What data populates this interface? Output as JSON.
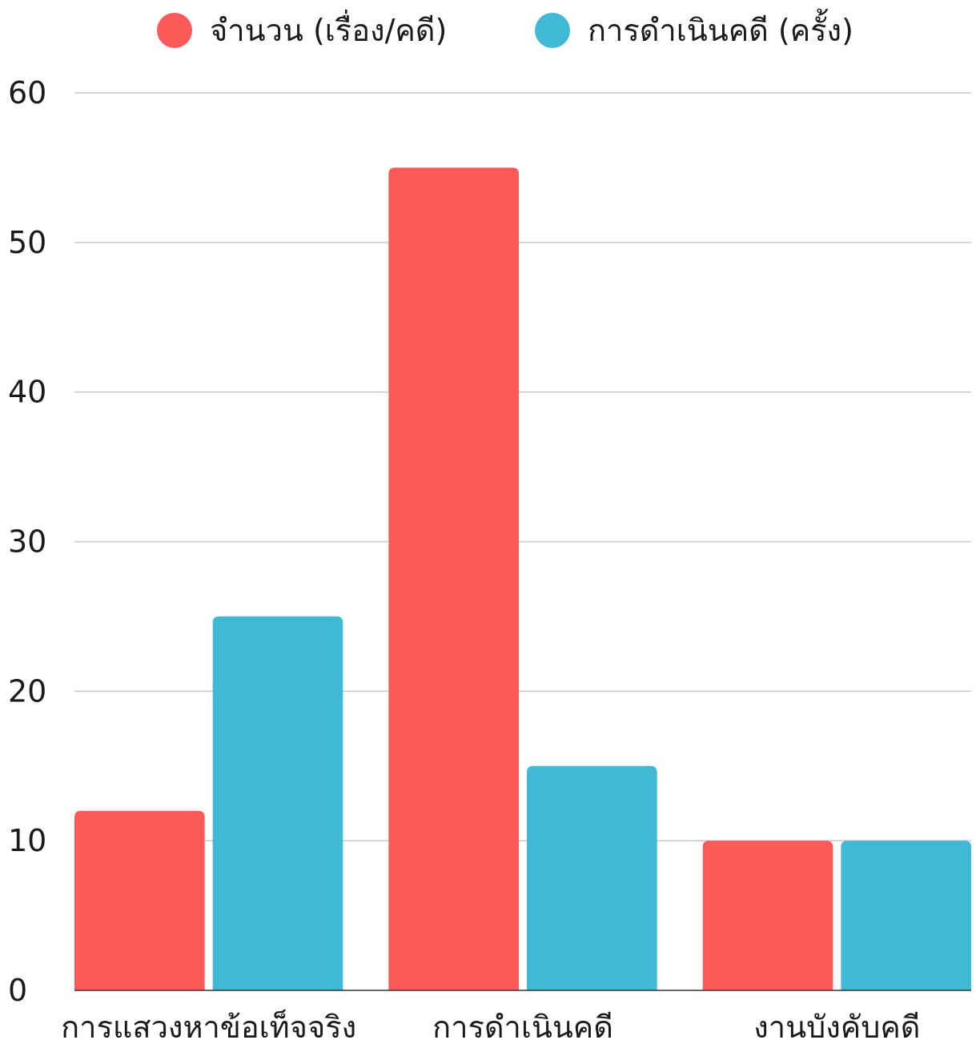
{
  "chart_data": {
    "type": "bar",
    "categories": [
      "การแสวงหาข้อเท็จจริง",
      "การดำเนินคดี",
      "งานบังคับคดี"
    ],
    "series": [
      {
        "name": "จำนวน (เรื่อง/คดี)",
        "values": [
          12,
          55,
          10
        ],
        "color": "#ff5a5a"
      },
      {
        "name": "การดำเนินคดี (ครั้ง)",
        "values": [
          25,
          15,
          10
        ],
        "color": "#41b8d5"
      }
    ],
    "ylim": [
      0,
      60
    ],
    "yticks": [
      0,
      10,
      20,
      30,
      40,
      50,
      60
    ],
    "grid": true,
    "legend_position": "top"
  }
}
